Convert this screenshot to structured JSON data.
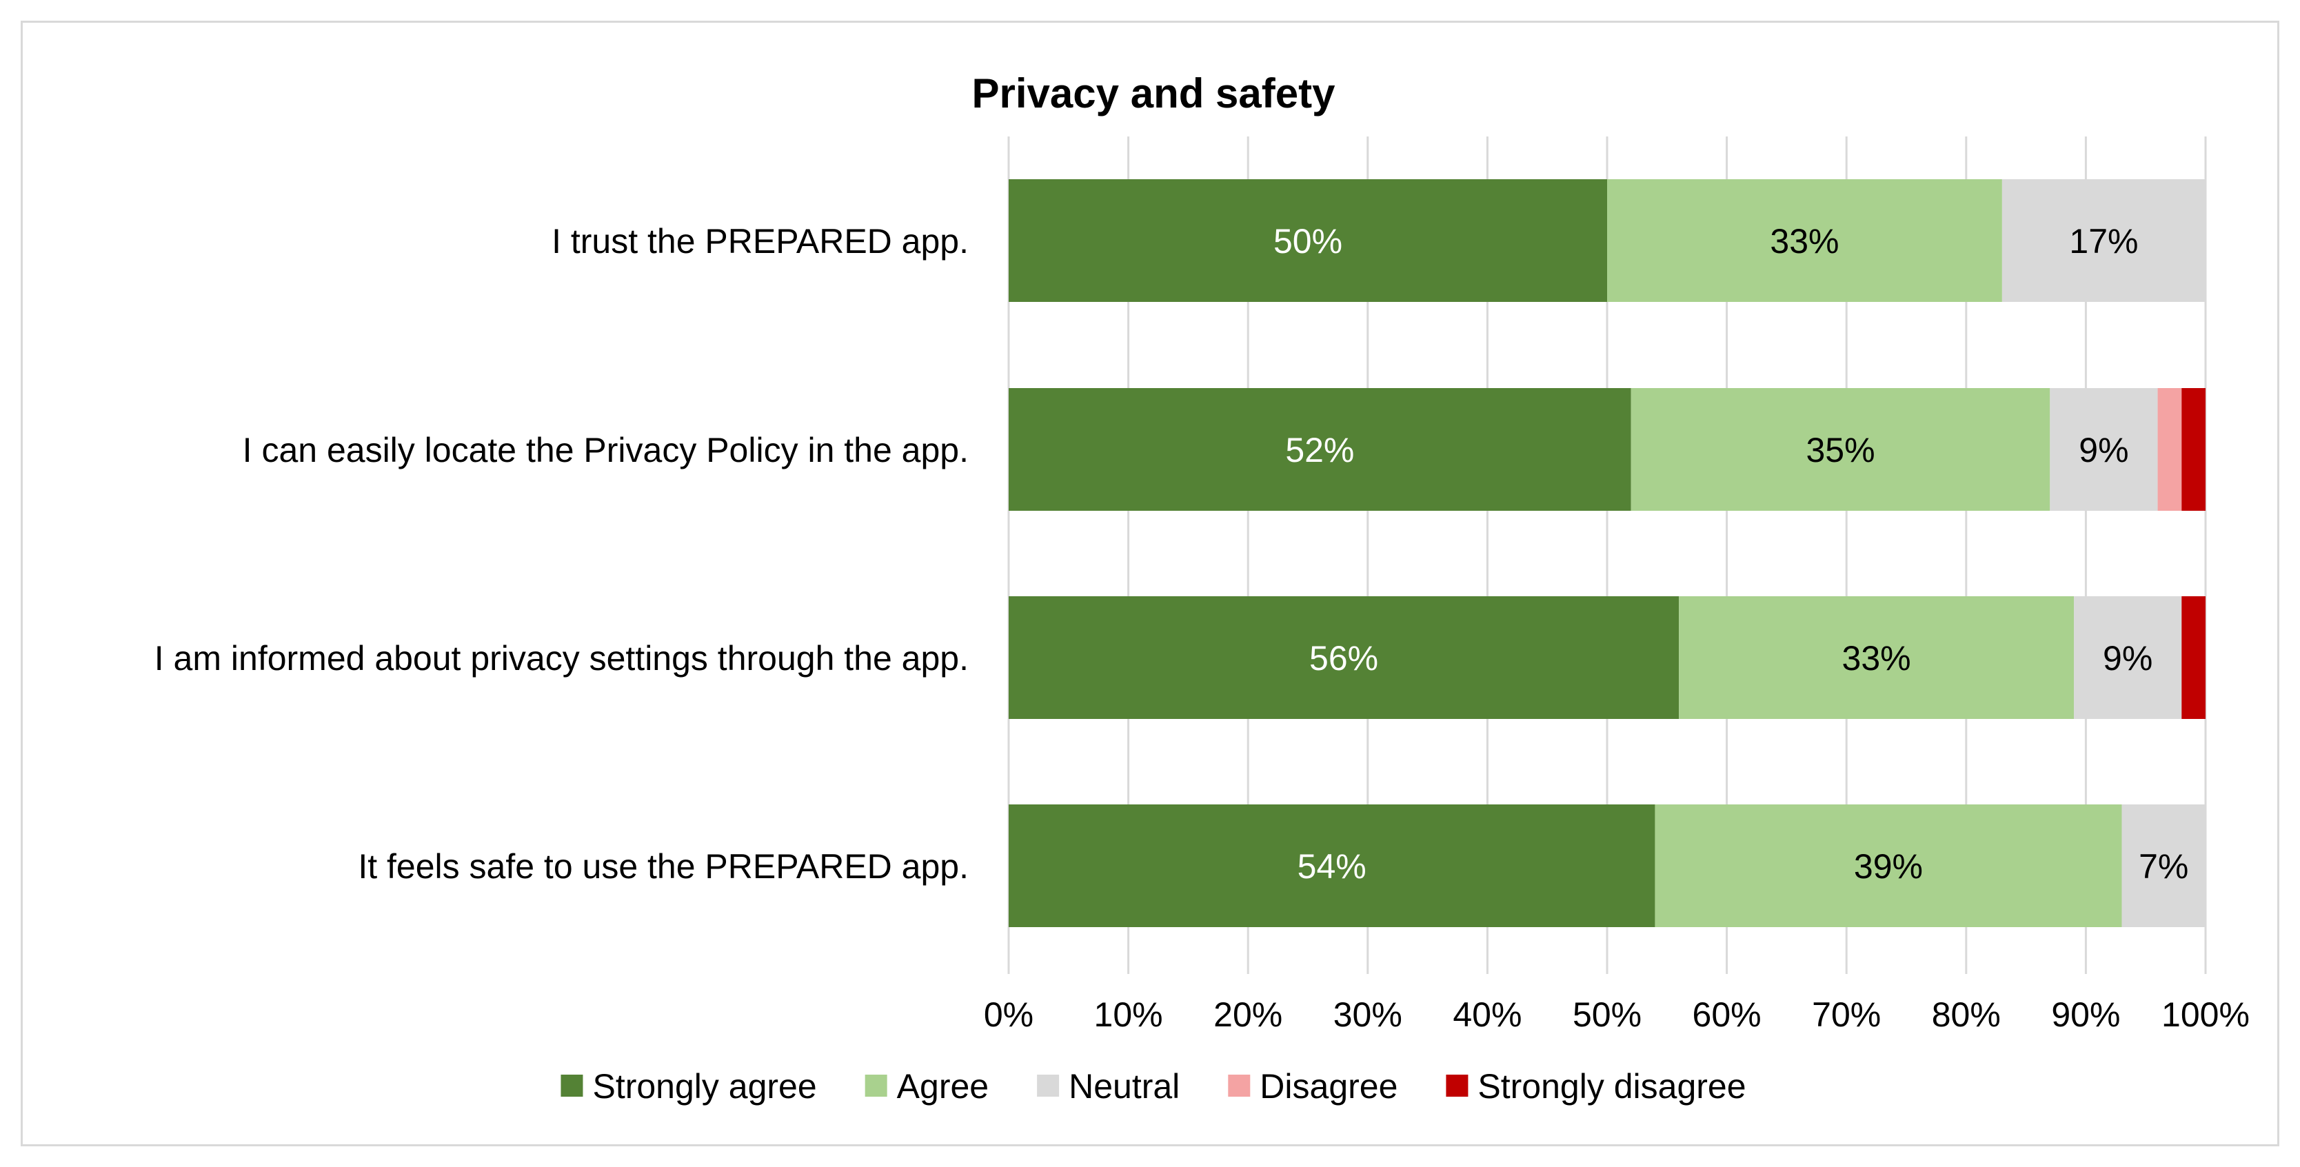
{
  "chart_data": {
    "type": "bar",
    "orientation": "horizontal",
    "stacked": true,
    "title": "Privacy and safety",
    "categories": [
      "I trust the PREPARED app.",
      "I can easily locate the Privacy Policy in the app.",
      "I am informed about privacy settings through the app.",
      "It feels safe to use the PREPARED app."
    ],
    "series": [
      {
        "name": "Strongly agree",
        "color": "#548235",
        "label_color": "#ffffff",
        "values": [
          50,
          52,
          56,
          54
        ],
        "labels": [
          "50%",
          "52%",
          "56%",
          "54%"
        ]
      },
      {
        "name": "Agree",
        "color": "#a9d18e",
        "label_color": "#000000",
        "values": [
          33,
          35,
          33,
          39
        ],
        "labels": [
          "33%",
          "35%",
          "33%",
          "39%"
        ]
      },
      {
        "name": "Neutral",
        "color": "#d9d9d9",
        "label_color": "#000000",
        "values": [
          17,
          9,
          9,
          7
        ],
        "labels": [
          "17%",
          "9%",
          "9%",
          "7%"
        ]
      },
      {
        "name": "Disagree",
        "color": "#f4a3a3",
        "label_color": "#000000",
        "values": [
          0,
          2,
          0,
          0
        ],
        "labels": [
          "",
          "",
          "",
          ""
        ]
      },
      {
        "name": "Strongly disagree",
        "color": "#c00000",
        "label_color": "#ffffff",
        "values": [
          0,
          2,
          2,
          0
        ],
        "labels": [
          "",
          "",
          "",
          ""
        ]
      }
    ],
    "xlim": [
      0,
      100
    ],
    "x_ticks": [
      "0%",
      "10%",
      "20%",
      "30%",
      "40%",
      "50%",
      "60%",
      "70%",
      "80%",
      "90%",
      "100%"
    ],
    "grid": "vertical",
    "legend_position": "bottom"
  }
}
